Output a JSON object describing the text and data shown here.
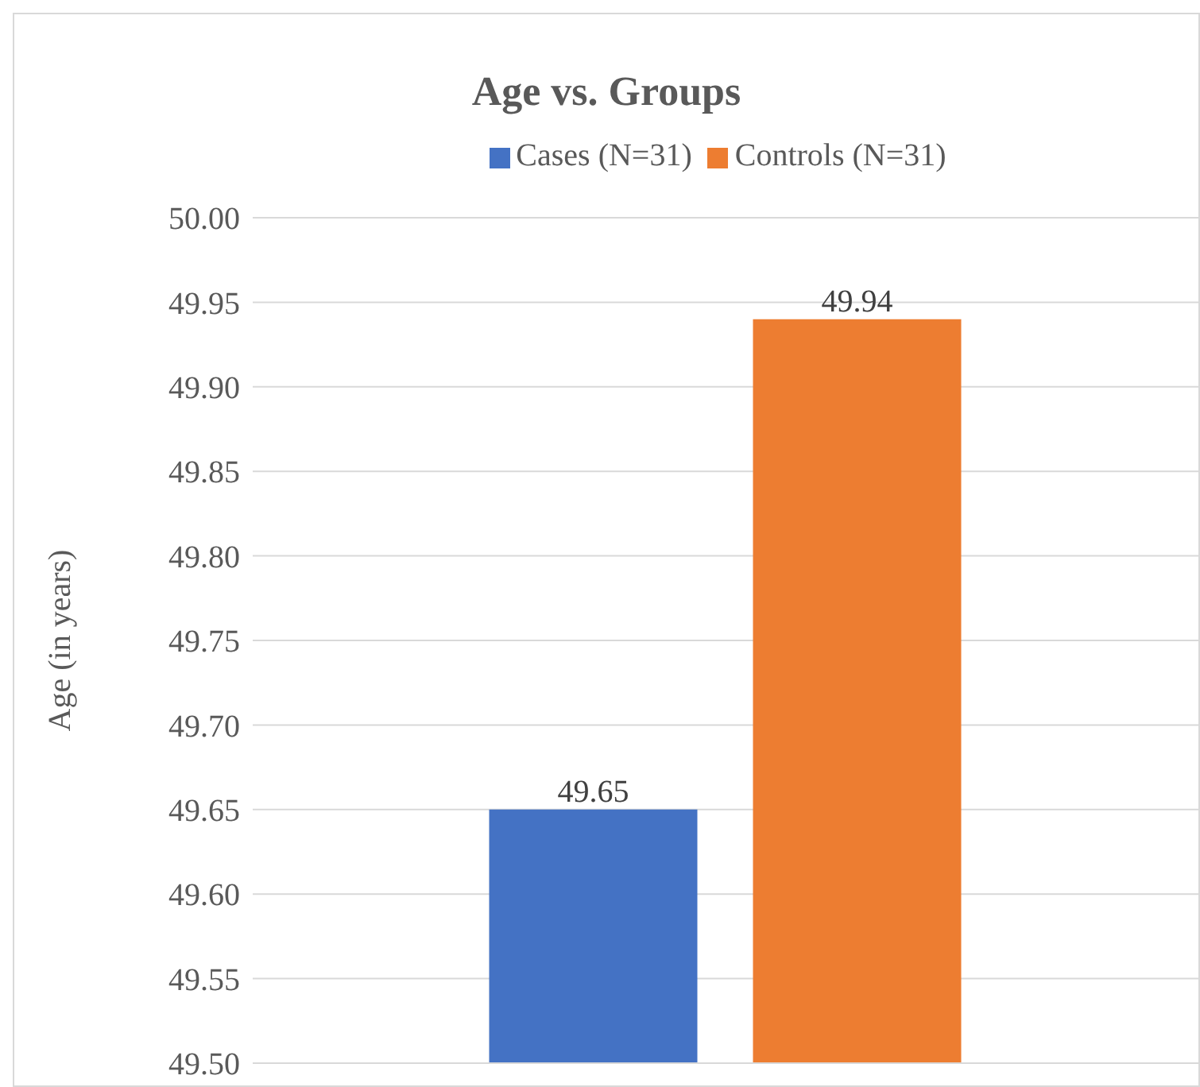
{
  "chart_data": {
    "type": "bar",
    "title": "Age vs. Groups",
    "ylabel": "Age (in years)",
    "categories": [
      null
    ],
    "series": [
      {
        "name": "Cases (N=31)",
        "color": "#4472c4",
        "values": [
          49.65
        ]
      },
      {
        "name": "Controls (N=31)",
        "color": "#ed7d31",
        "values": [
          49.94
        ]
      }
    ],
    "ylim": [
      49.5,
      50.0
    ],
    "yticks": [
      {
        "value": 49.5,
        "label": "49.50"
      },
      {
        "value": 49.55,
        "label": "49.55"
      },
      {
        "value": 49.6,
        "label": "49.60"
      },
      {
        "value": 49.65,
        "label": "49.65"
      },
      {
        "value": 49.7,
        "label": "49.70"
      },
      {
        "value": 49.75,
        "label": "49.75"
      },
      {
        "value": 49.8,
        "label": "49.80"
      },
      {
        "value": 49.85,
        "label": "49.85"
      },
      {
        "value": 49.9,
        "label": "49.90"
      },
      {
        "value": 49.95,
        "label": "49.95"
      },
      {
        "value": 50.0,
        "label": "50.00"
      }
    ],
    "grid": "y",
    "legend": "top",
    "data_labels": true
  }
}
